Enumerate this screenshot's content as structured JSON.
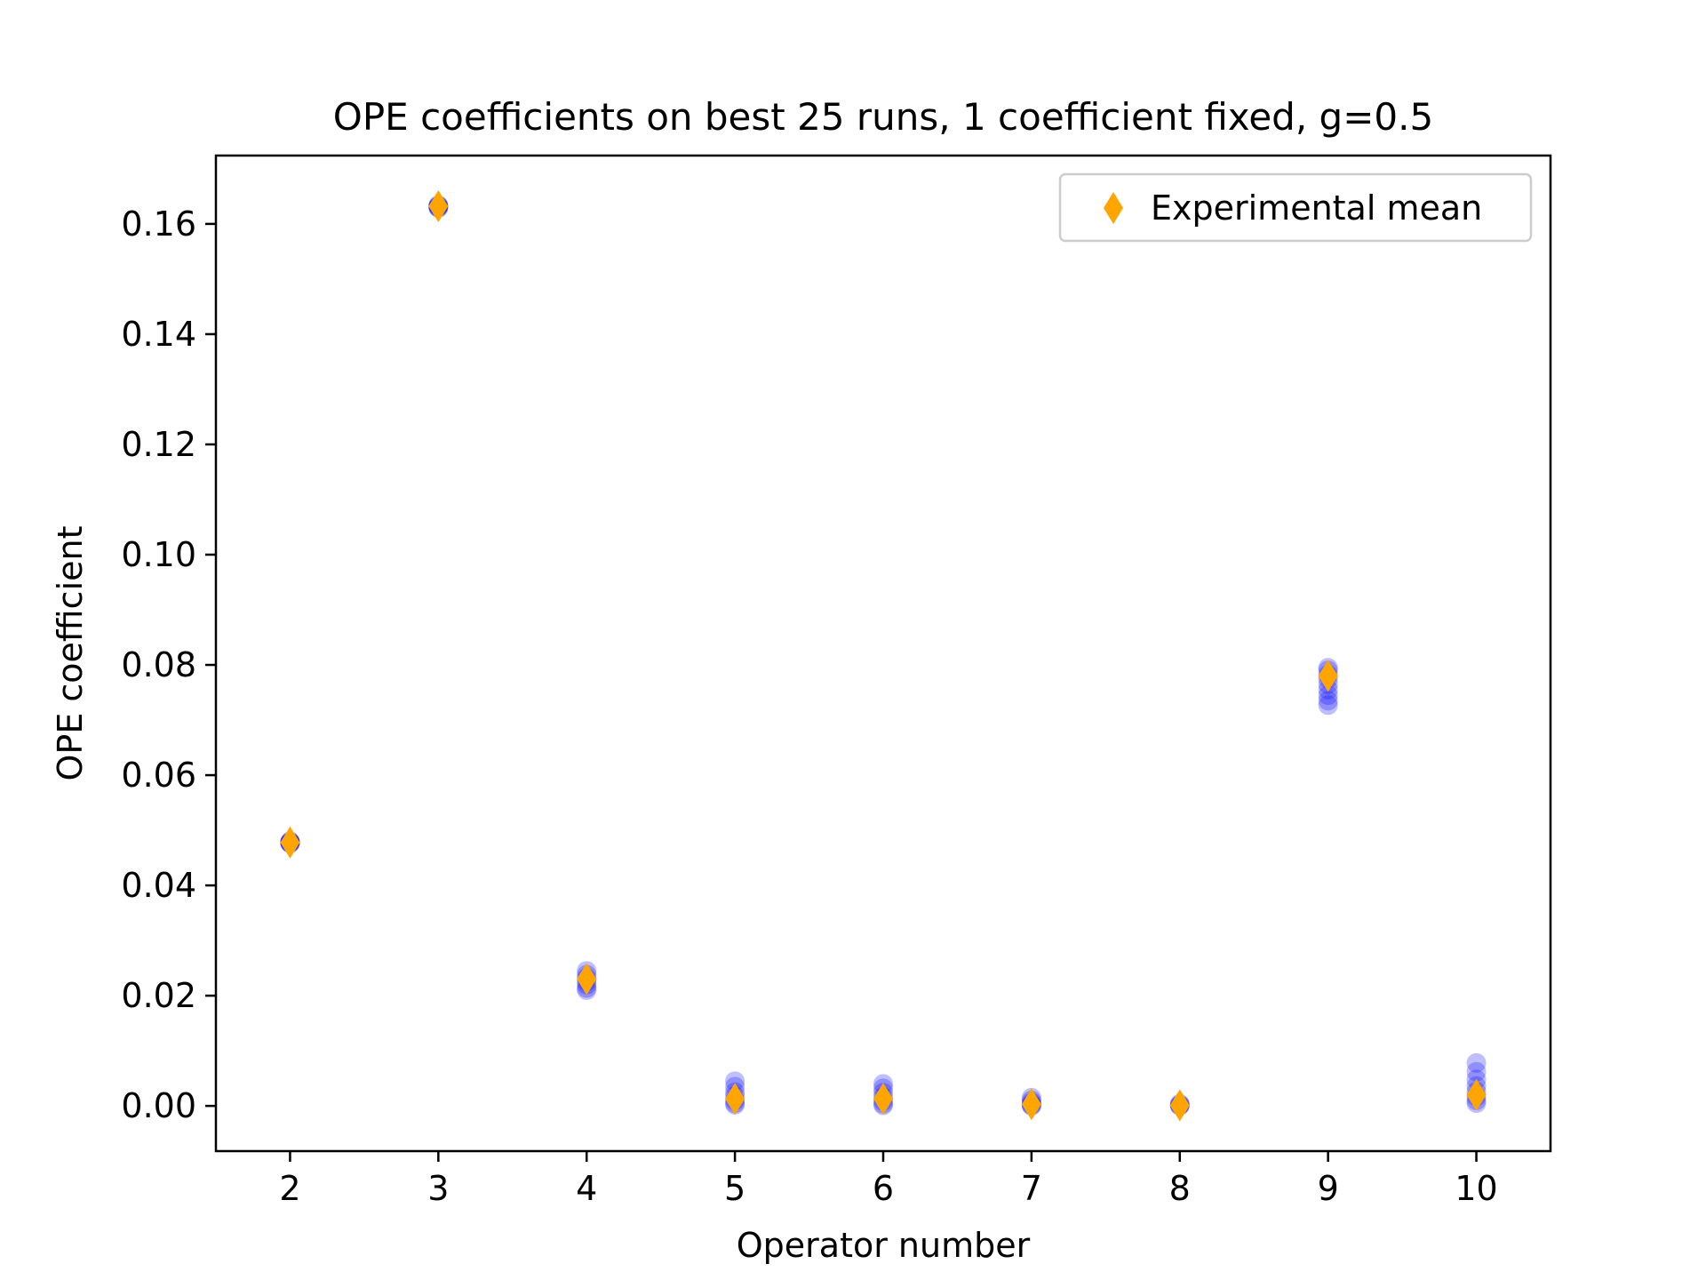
{
  "chart_data": {
    "type": "scatter",
    "title": "OPE coefficients on best 25 runs, 1 coefficient fixed, g=0.5",
    "xlabel": "Operator number",
    "ylabel": "OPE coefficient",
    "xlim": [
      1.5,
      10.5
    ],
    "ylim": [
      -0.0082,
      0.1724
    ],
    "x_ticks": [
      2,
      3,
      4,
      5,
      6,
      7,
      8,
      9,
      10
    ],
    "x_tick_labels": [
      "2",
      "3",
      "4",
      "5",
      "6",
      "7",
      "8",
      "9",
      "10"
    ],
    "y_ticks": [
      0.0,
      0.02,
      0.04,
      0.06,
      0.08,
      0.1,
      0.12,
      0.14,
      0.16
    ],
    "y_tick_labels": [
      "0.00",
      "0.02",
      "0.04",
      "0.06",
      "0.08",
      "0.10",
      "0.12",
      "0.14",
      "0.16"
    ],
    "grid": false,
    "legend": {
      "position": "top-right",
      "entries": [
        "Experimental mean"
      ]
    },
    "series": [
      {
        "kind": "runs",
        "color": "#0000ff",
        "alpha": 0.25,
        "marker": "circle",
        "points": [
          {
            "x": 2,
            "values": [
              0.0478,
              0.0477,
              0.0479,
              0.0478,
              0.0476,
              0.048
            ]
          },
          {
            "x": 3,
            "values": [
              0.1632,
              0.163,
              0.1634,
              0.1631,
              0.1633,
              0.1629
            ]
          },
          {
            "x": 4,
            "values": [
              0.0245,
              0.0238,
              0.0232,
              0.0226,
              0.022,
              0.0214,
              0.021
            ]
          },
          {
            "x": 5,
            "values": [
              0.0045,
              0.0035,
              0.0025,
              0.0018,
              0.001,
              0.0005,
              0.0002
            ]
          },
          {
            "x": 6,
            "values": [
              0.004,
              0.0032,
              0.0024,
              0.0016,
              0.0009,
              0.0004,
              0.0001
            ]
          },
          {
            "x": 7,
            "values": [
              0.0015,
              0.001,
              0.0006,
              0.0003,
              0.0001,
              0.0
            ]
          },
          {
            "x": 8,
            "values": [
              0.0004,
              0.0002,
              0.0001,
              0.0
            ]
          },
          {
            "x": 9,
            "values": [
              0.0795,
              0.079,
              0.0782,
              0.0775,
              0.0765,
              0.0755,
              0.0745,
              0.0735,
              0.0727
            ]
          },
          {
            "x": 10,
            "values": [
              0.0078,
              0.0062,
              0.0048,
              0.0036,
              0.0026,
              0.0017,
              0.001,
              0.0005
            ]
          }
        ]
      },
      {
        "name": "Experimental mean",
        "color": "#ffa500",
        "marker": "diamond",
        "x": [
          2,
          3,
          4,
          5,
          6,
          7,
          8,
          9,
          10
        ],
        "y": [
          0.0478,
          0.1632,
          0.023,
          0.0013,
          0.0013,
          0.0003,
          0.0001,
          0.078,
          0.002
        ]
      }
    ]
  }
}
